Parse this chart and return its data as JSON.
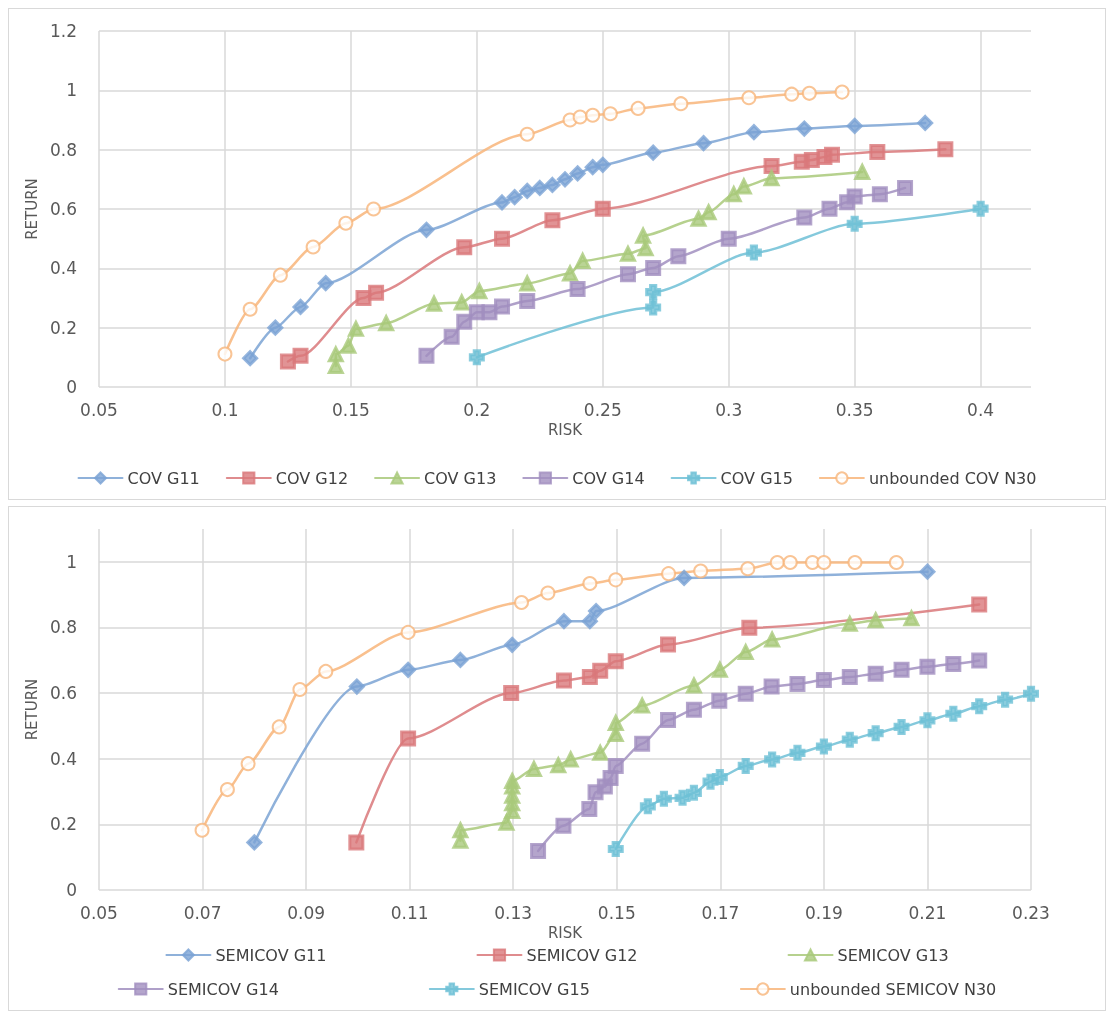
{
  "chart_data": [
    {
      "type": "line",
      "xlabel": "RISK",
      "ylabel": "RETURN",
      "xlim": [
        0.05,
        0.42
      ],
      "ylim": [
        0,
        1.2
      ],
      "xticks": [
        0.05,
        0.1,
        0.15,
        0.2,
        0.25,
        0.3,
        0.35,
        0.4
      ],
      "yticks": [
        0,
        0.2,
        0.4,
        0.6,
        0.8,
        1,
        1.2
      ],
      "grid": true,
      "legend": "bottom",
      "series": [
        {
          "name": "COV G11",
          "color": "#7ba3d4",
          "marker": "diamond",
          "x": [
            0.11,
            0.12,
            0.13,
            0.14,
            0.18,
            0.21,
            0.215,
            0.22,
            0.225,
            0.23,
            0.235,
            0.24,
            0.246,
            0.25,
            0.27,
            0.29,
            0.31,
            0.33,
            0.35,
            0.378
          ],
          "values": [
            0.097,
            0.2,
            0.27,
            0.35,
            0.53,
            0.622,
            0.64,
            0.661,
            0.671,
            0.681,
            0.7,
            0.72,
            0.741,
            0.749,
            0.79,
            0.822,
            0.859,
            0.871,
            0.88,
            0.89
          ]
        },
        {
          "name": "COV G12",
          "color": "#d9787a",
          "marker": "square",
          "x": [
            0.125,
            0.13,
            0.155,
            0.16,
            0.195,
            0.21,
            0.23,
            0.25,
            0.317,
            0.329,
            0.333,
            0.338,
            0.341,
            0.359,
            0.386
          ],
          "values": [
            0.086,
            0.105,
            0.3,
            0.318,
            0.471,
            0.5,
            0.562,
            0.601,
            0.745,
            0.759,
            0.765,
            0.775,
            0.783,
            0.792,
            0.801
          ]
        },
        {
          "name": "COV G13",
          "color": "#a9c97a",
          "marker": "triangle",
          "x": [
            0.144,
            0.144,
            0.149,
            0.152,
            0.164,
            0.183,
            0.194,
            0.201,
            0.22,
            0.237,
            0.242,
            0.26,
            0.267,
            0.266,
            0.288,
            0.292,
            0.302,
            0.306,
            0.317,
            0.353
          ],
          "values": [
            0.071,
            0.11,
            0.139,
            0.196,
            0.215,
            0.281,
            0.285,
            0.323,
            0.349,
            0.383,
            0.425,
            0.449,
            0.468,
            0.51,
            0.567,
            0.589,
            0.65,
            0.676,
            0.704,
            0.725
          ]
        },
        {
          "name": "COV G14",
          "color": "#a18fbf",
          "marker": "square",
          "x": [
            0.18,
            0.19,
            0.195,
            0.2,
            0.205,
            0.21,
            0.22,
            0.24,
            0.26,
            0.27,
            0.28,
            0.3,
            0.33,
            0.34,
            0.347,
            0.35,
            0.36,
            0.37
          ],
          "values": [
            0.105,
            0.169,
            0.22,
            0.252,
            0.252,
            0.271,
            0.29,
            0.33,
            0.38,
            0.401,
            0.441,
            0.5,
            0.571,
            0.601,
            0.623,
            0.642,
            0.65,
            0.671
          ]
        },
        {
          "name": "COV G15",
          "color": "#6ec0d6",
          "marker": "cross",
          "x": [
            0.2,
            0.27,
            0.27,
            0.31,
            0.35,
            0.4
          ],
          "values": [
            0.1,
            0.268,
            0.32,
            0.453,
            0.55,
            0.601
          ]
        },
        {
          "name": "unbounded COV N30",
          "color": "#f8b57a",
          "marker": "circle",
          "x": [
            0.1,
            0.11,
            0.122,
            0.135,
            0.148,
            0.159,
            0.22,
            0.237,
            0.241,
            0.246,
            0.253,
            0.264,
            0.281,
            0.308,
            0.325,
            0.332,
            0.345
          ],
          "values": [
            0.111,
            0.262,
            0.377,
            0.472,
            0.552,
            0.6,
            0.852,
            0.9,
            0.91,
            0.916,
            0.921,
            0.939,
            0.955,
            0.975,
            0.987,
            0.99,
            0.994
          ]
        }
      ]
    },
    {
      "type": "line",
      "xlabel": "RISK",
      "ylabel": "RETURN",
      "xlim": [
        0.05,
        0.23
      ],
      "ylim": [
        0,
        1.1
      ],
      "xticks": [
        0.05,
        0.07,
        0.09,
        0.11,
        0.13,
        0.15,
        0.17,
        0.19,
        0.21,
        0.23
      ],
      "yticks": [
        0,
        0.2,
        0.4,
        0.6,
        0.8,
        1
      ],
      "grid": true,
      "legend": "bottom",
      "series": [
        {
          "name": "SEMICOV G11",
          "color": "#7ba3d4",
          "marker": "diamond",
          "x": [
            0.08,
            0.0998,
            0.1097,
            0.1198,
            0.1298,
            0.1398,
            0.1448,
            0.146,
            0.163,
            0.21
          ],
          "values": [
            0.145,
            0.62,
            0.671,
            0.701,
            0.747,
            0.819,
            0.819,
            0.85,
            0.951,
            0.97
          ]
        },
        {
          "name": "SEMICOV G12",
          "color": "#d9787a",
          "marker": "square",
          "x": [
            0.0997,
            0.1097,
            0.1296,
            0.1398,
            0.1448,
            0.1468,
            0.1498,
            0.1599,
            0.1748,
            0.1756,
            0.22
          ],
          "values": [
            0.145,
            0.462,
            0.6,
            0.638,
            0.649,
            0.668,
            0.697,
            0.748,
            null,
            0.799,
            0.87
          ]
        },
        {
          "name": "SEMICOV G13",
          "color": "#a9c97a",
          "marker": "triangle",
          "x": [
            0.1198,
            0.1198,
            0.1287,
            0.1298,
            0.1298,
            0.1298,
            0.1298,
            0.1298,
            0.134,
            0.1387,
            0.1411,
            0.1468,
            0.1498,
            0.1498,
            0.1549,
            0.1649,
            0.1699,
            0.1749,
            0.18,
            0.195,
            0.2,
            0.2069
          ],
          "values": [
            0.15,
            0.182,
            0.205,
            0.241,
            0.264,
            0.287,
            0.315,
            0.332,
            0.369,
            0.38,
            0.398,
            0.418,
            0.475,
            0.509,
            0.562,
            0.623,
            0.671,
            0.725,
            0.763,
            0.811,
            0.822,
            0.828
          ]
        },
        {
          "name": "SEMICOV G14",
          "color": "#a18fbf",
          "marker": "square",
          "x": [
            0.1348,
            0.1397,
            0.1447,
            0.1459,
            0.1477,
            0.1488,
            0.1498,
            0.1549,
            0.1599,
            0.1649,
            0.1698,
            0.1749,
            0.1799,
            0.1849,
            0.19,
            0.195,
            0.2,
            0.205,
            0.21,
            0.215,
            0.22
          ],
          "values": [
            0.119,
            0.196,
            0.247,
            0.298,
            0.315,
            0.341,
            0.378,
            0.446,
            0.518,
            0.549,
            0.577,
            0.598,
            0.62,
            0.628,
            0.64,
            0.649,
            0.659,
            0.671,
            0.68,
            0.689,
            0.699
          ]
        },
        {
          "name": "SEMICOV G15",
          "color": "#6ec0d6",
          "marker": "cross",
          "x": [
            0.1498,
            0.156,
            0.1591,
            0.1627,
            0.1649,
            0.1681,
            0.1699,
            0.1749,
            0.18,
            0.1849,
            0.19,
            0.195,
            0.2,
            0.205,
            0.21,
            0.215,
            0.22,
            0.225,
            0.23
          ],
          "values": [
            0.125,
            0.255,
            0.278,
            0.281,
            0.296,
            0.33,
            0.344,
            0.378,
            0.398,
            0.418,
            0.437,
            0.458,
            0.478,
            0.497,
            0.517,
            0.537,
            0.56,
            0.58,
            0.598
          ]
        },
        {
          "name": "unbounded SEMICOV N30",
          "color": "#f8b57a",
          "marker": "circle",
          "x": [
            0.0699,
            0.0748,
            0.0788,
            0.0848,
            0.0888,
            0.0938,
            0.1097,
            0.1316,
            0.1367,
            0.1448,
            0.1498,
            0.16,
            0.1662,
            0.1753,
            0.181,
            0.1835,
            0.1878,
            0.19,
            0.196,
            0.204
          ],
          "values": [
            0.182,
            0.306,
            0.385,
            0.497,
            0.611,
            0.666,
            0.785,
            0.876,
            0.905,
            0.934,
            0.945,
            0.964,
            0.972,
            0.979,
            0.998,
            0.998,
            0.998,
            0.998,
            0.998,
            0.998
          ]
        }
      ]
    }
  ]
}
